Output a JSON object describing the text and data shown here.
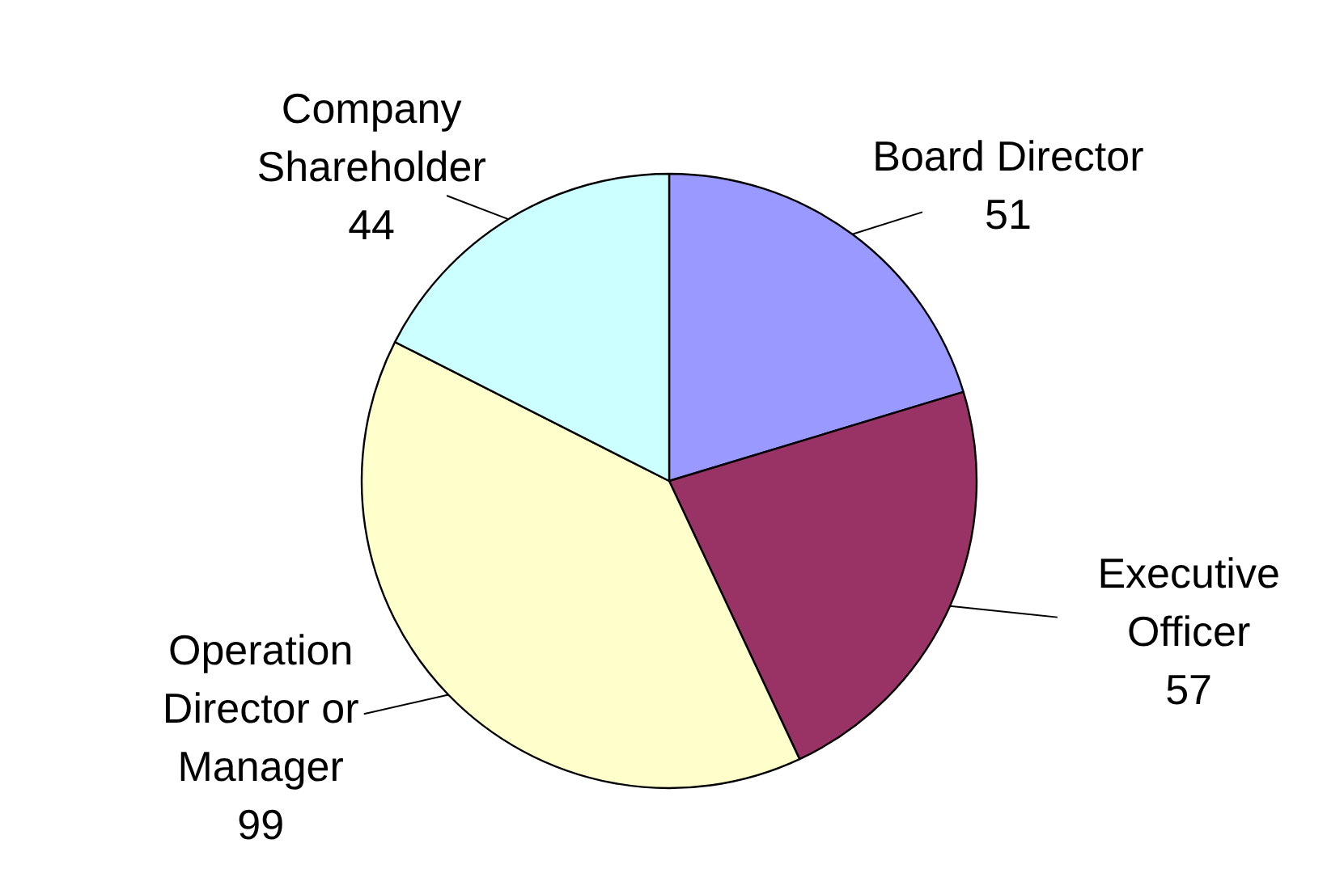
{
  "chart_data": {
    "type": "pie",
    "categories": [
      "Board Director",
      "Executive Officer",
      "Operation Director or Manager",
      "Company Shareholder"
    ],
    "values": [
      51,
      57,
      99,
      44
    ],
    "colors": [
      "#9999ff",
      "#993366",
      "#ffffcc",
      "#ccffff"
    ],
    "data_labels": true
  }
}
